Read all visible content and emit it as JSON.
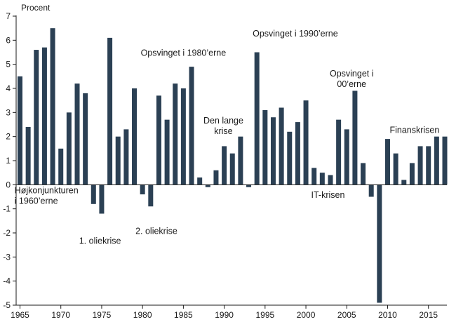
{
  "colors": {
    "bar": "#2b4054",
    "axis": "#1a1a1a",
    "background": "#ffffff"
  },
  "chart_data": {
    "type": "bar",
    "title": "",
    "ylabel": "Procent",
    "xlabel": "",
    "ylim": [
      -5,
      7
    ],
    "grid": false,
    "yticks": [
      7,
      6,
      5,
      4,
      3,
      2,
      1,
      0,
      -1,
      -2,
      -3,
      -4,
      -5
    ],
    "ytick_labels": [
      "7",
      "6",
      "5",
      "4",
      "3",
      "2",
      "1",
      "0",
      "-1",
      "-2",
      "-3",
      "-4",
      "-5"
    ],
    "xticks": [
      1965,
      1970,
      1975,
      1980,
      1985,
      1990,
      1995,
      2000,
      2005,
      2010,
      2015
    ],
    "xtick_labels": [
      "1965",
      "1970",
      "1975",
      "1980",
      "1985",
      "1990",
      "1995",
      "2000",
      "2005",
      "2010",
      "2015"
    ],
    "categories": [
      1965,
      1966,
      1967,
      1968,
      1969,
      1970,
      1971,
      1972,
      1973,
      1974,
      1975,
      1976,
      1977,
      1978,
      1979,
      1980,
      1981,
      1982,
      1983,
      1984,
      1985,
      1986,
      1987,
      1988,
      1989,
      1990,
      1991,
      1992,
      1993,
      1994,
      1995,
      1996,
      1997,
      1998,
      1999,
      2000,
      2001,
      2002,
      2003,
      2004,
      2005,
      2006,
      2007,
      2008,
      2009,
      2010,
      2011,
      2012,
      2013,
      2014,
      2015,
      2016,
      2017
    ],
    "values": [
      4.5,
      2.4,
      5.6,
      5.7,
      6.5,
      1.5,
      3.0,
      4.2,
      3.8,
      -0.8,
      -1.2,
      6.1,
      2.0,
      2.3,
      4.0,
      -0.4,
      -0.9,
      3.7,
      2.7,
      4.2,
      4.0,
      4.9,
      0.3,
      -0.1,
      0.6,
      1.6,
      1.3,
      2.0,
      -0.1,
      5.5,
      3.1,
      2.8,
      3.2,
      2.2,
      2.6,
      3.5,
      0.7,
      0.5,
      0.4,
      2.7,
      2.3,
      3.9,
      0.9,
      -0.5,
      -4.9,
      1.9,
      1.3,
      0.2,
      0.9,
      1.6,
      1.6,
      2.0,
      2.0
    ],
    "annotations": [
      {
        "id": "hojkonjunkturen",
        "lines": [
          "Højkonjunkturen",
          "i 1960’erne"
        ],
        "year": 1964.5,
        "value": -0.35,
        "anchor": "start"
      },
      {
        "id": "oliekrise-1",
        "lines": [
          "1. oliekrise"
        ],
        "year": 1974.8,
        "value": -2.45,
        "anchor": "middle"
      },
      {
        "id": "oliekrise-2",
        "lines": [
          "2. oliekrise"
        ],
        "year": 1981.7,
        "value": -2.05,
        "anchor": "middle"
      },
      {
        "id": "opsving-1980",
        "lines": [
          "Opsvinget i 1980’erne"
        ],
        "year": 1985.0,
        "value": 5.35,
        "anchor": "middle"
      },
      {
        "id": "den-lange-krise",
        "lines": [
          "Den lange",
          "krise"
        ],
        "year": 1989.9,
        "value": 2.55,
        "anchor": "middle"
      },
      {
        "id": "opsving-1990",
        "lines": [
          "Opsvinget i 1990’erne"
        ],
        "year": 1998.7,
        "value": 6.15,
        "anchor": "middle"
      },
      {
        "id": "opsving-00",
        "lines": [
          "Opsvinget i",
          "00’erne"
        ],
        "year": 2005.6,
        "value": 4.5,
        "anchor": "middle"
      },
      {
        "id": "it-krisen",
        "lines": [
          "IT-krisen"
        ],
        "year": 2002.7,
        "value": -0.55,
        "anchor": "middle"
      },
      {
        "id": "finanskrisen",
        "lines": [
          "Finanskrisen"
        ],
        "year": 2013.3,
        "value": 2.15,
        "anchor": "middle"
      }
    ]
  }
}
